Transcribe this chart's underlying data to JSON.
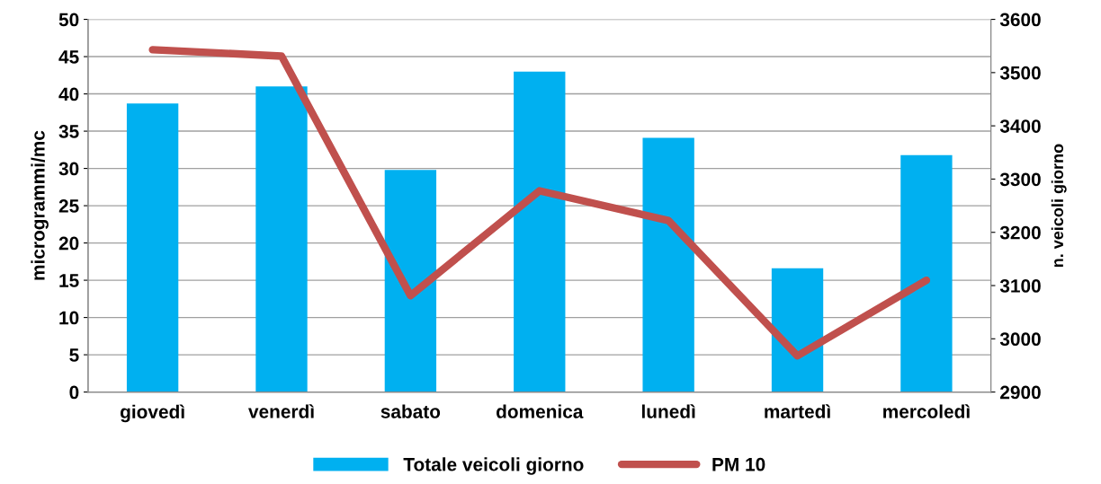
{
  "chart_data": {
    "type": "bar",
    "ylabel": "microgrammi/mc",
    "y2label": "n. veicoli giorno",
    "categories": [
      "giovedì",
      "venerdì",
      "sabato",
      "domenica",
      "lunedì",
      "martedì",
      "mercoledì"
    ],
    "series": [
      {
        "name": "Totale veicoli giorno",
        "color": "#00b0f0",
        "values": [
          38.7,
          41.0,
          29.8,
          43.0,
          34.1,
          16.6,
          31.8
        ]
      },
      {
        "name": "PM 10",
        "type": "line",
        "axis": "y2",
        "color": "#c0504d",
        "values": [
          3543,
          3531,
          3081,
          3278,
          3222,
          2968,
          3110
        ]
      }
    ],
    "ylim": [
      0,
      50
    ],
    "yticks": [
      0,
      5,
      10,
      15,
      20,
      25,
      30,
      35,
      40,
      45,
      50
    ],
    "y2lim": [
      2900,
      3600
    ],
    "y2ticks": [
      2900,
      3000,
      3100,
      3200,
      3300,
      3400,
      3500,
      3600
    ],
    "grid": "y",
    "legend": "bottom"
  }
}
